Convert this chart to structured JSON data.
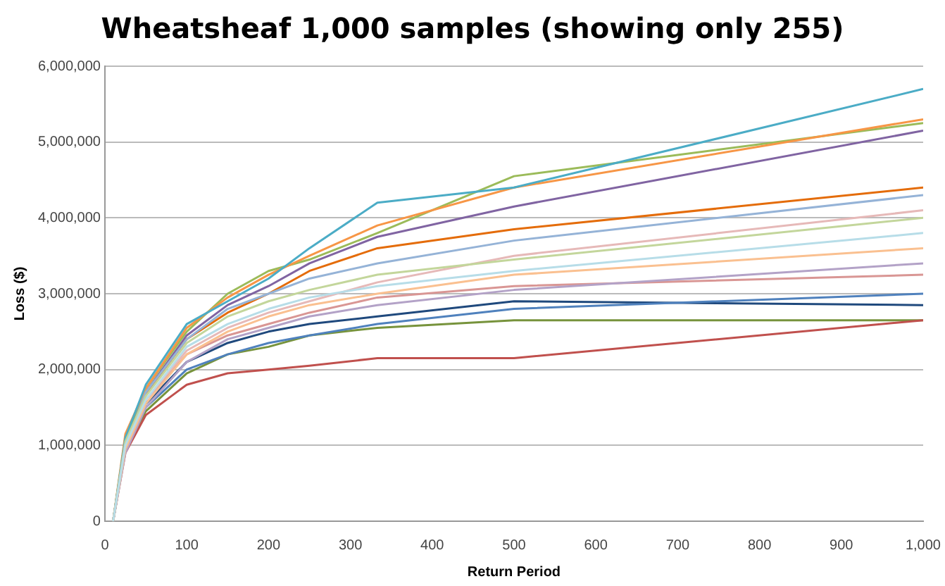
{
  "chart_data": {
    "type": "line",
    "title": "Wheatsheaf 1,000 samples (showing only 255)",
    "xlabel": "Return Period",
    "ylabel": "Loss ($)",
    "x": [
      10,
      25,
      50,
      100,
      150,
      200,
      250,
      333,
      500,
      1000
    ],
    "xlim": [
      0,
      1000
    ],
    "xticks": [
      0,
      100,
      200,
      300,
      400,
      500,
      600,
      700,
      800,
      900,
      {
        "value": 1000,
        "label": "1,000"
      }
    ],
    "ylim": [
      0,
      6000000
    ],
    "yticks": [
      {
        "value": 0,
        "label": "0"
      },
      {
        "value": 1000000,
        "label": "1,000,000"
      },
      {
        "value": 2000000,
        "label": "2,000,000"
      },
      {
        "value": 3000000,
        "label": "3,000,000"
      },
      {
        "value": 4000000,
        "label": "4,000,000"
      },
      {
        "value": 5000000,
        "label": "5,000,000"
      },
      {
        "value": 6000000,
        "label": "6,000,000"
      }
    ],
    "grid": "y",
    "legend": false,
    "marker": "none",
    "line_style": "solid",
    "series": [
      {
        "color": "#b7dde8",
        "values": [
          0,
          1000000,
          1600000,
          2300000,
          2600000,
          2800000,
          2950000,
          3100000,
          3300000,
          3800000
        ]
      },
      {
        "color": "#fac090",
        "values": [
          0,
          950000,
          1550000,
          2200000,
          2500000,
          2700000,
          2850000,
          3000000,
          3250000,
          3600000
        ]
      },
      {
        "color": "#c3d69b",
        "values": [
          0,
          1050000,
          1650000,
          2350000,
          2700000,
          2900000,
          3050000,
          3250000,
          3450000,
          4000000
        ]
      },
      {
        "color": "#b3a2c7",
        "values": [
          0,
          900000,
          1500000,
          2100000,
          2400000,
          2550000,
          2700000,
          2850000,
          3050000,
          3400000
        ]
      },
      {
        "color": "#95b3d7",
        "values": [
          0,
          1000000,
          1700000,
          2400000,
          2800000,
          3000000,
          3200000,
          3400000,
          3700000,
          4300000
        ]
      },
      {
        "color": "#e6b9b8",
        "values": [
          0,
          1000000,
          1600000,
          2250000,
          2550000,
          2750000,
          2900000,
          3150000,
          3500000,
          4100000
        ]
      },
      {
        "color": "#4bacc6",
        "values": [
          0,
          1100000,
          1800000,
          2600000,
          2900000,
          3200000,
          3600000,
          4200000,
          4400000,
          5700000
        ]
      },
      {
        "color": "#f79646",
        "values": [
          0,
          1150000,
          1750000,
          2550000,
          2950000,
          3250000,
          3500000,
          3900000,
          4400000,
          5300000
        ]
      },
      {
        "color": "#9bbb59",
        "values": [
          0,
          1100000,
          1750000,
          2500000,
          3000000,
          3300000,
          3450000,
          3800000,
          4550000,
          5250000
        ]
      },
      {
        "color": "#8064a2",
        "values": [
          0,
          1050000,
          1700000,
          2450000,
          2850000,
          3100000,
          3400000,
          3750000,
          4150000,
          5150000
        ]
      },
      {
        "color": "#4f81bd",
        "values": [
          0,
          950000,
          1500000,
          2000000,
          2200000,
          2350000,
          2450000,
          2600000,
          2800000,
          3000000
        ]
      },
      {
        "color": "#c0504d",
        "values": [
          0,
          900000,
          1400000,
          1800000,
          1950000,
          2000000,
          2050000,
          2150000,
          2150000,
          2650000
        ]
      },
      {
        "color": "#77933c",
        "values": [
          0,
          950000,
          1450000,
          1950000,
          2200000,
          2300000,
          2450000,
          2550000,
          2650000,
          2650000
        ]
      },
      {
        "color": "#1f497d",
        "values": [
          0,
          1000000,
          1550000,
          2100000,
          2350000,
          2500000,
          2600000,
          2700000,
          2900000,
          2850000
        ]
      },
      {
        "color": "#e46c0a",
        "values": [
          0,
          1050000,
          1680000,
          2400000,
          2750000,
          3000000,
          3300000,
          3600000,
          3850000,
          4400000
        ]
      },
      {
        "color": "#d99694",
        "values": [
          0,
          1000000,
          1600000,
          2200000,
          2450000,
          2600000,
          2750000,
          2950000,
          3100000,
          3250000
        ]
      }
    ]
  }
}
